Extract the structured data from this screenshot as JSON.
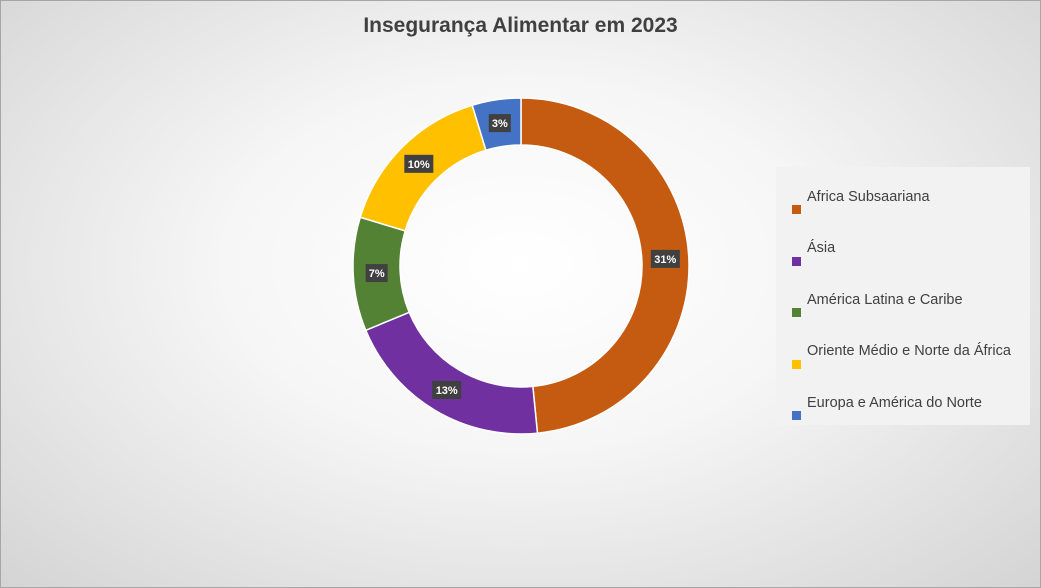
{
  "chart_data": {
    "type": "pie",
    "variant": "donut",
    "title": "Insegurança Alimentar em 2023",
    "categories": [
      "Africa Subsaariana",
      "Ásia",
      "América Latina e Caribe",
      "Oriente Médio e Norte da África",
      "Europa e América do Norte"
    ],
    "values": [
      31,
      13,
      7,
      10,
      3
    ],
    "data_labels": [
      "31%",
      "13%",
      "7%",
      "10%",
      "3%"
    ],
    "colors": [
      "#c55a11",
      "#7030a0",
      "#548235",
      "#ffc000",
      "#4472c4"
    ],
    "legend_position": "right"
  }
}
